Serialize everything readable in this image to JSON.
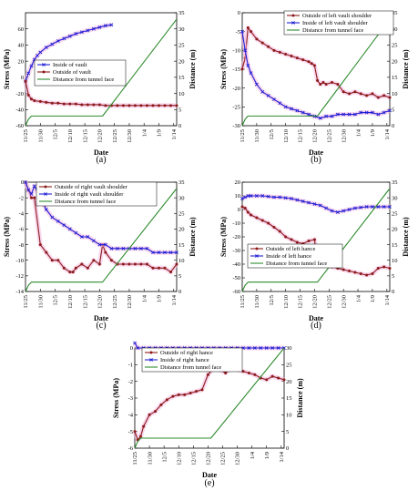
{
  "chart_data": [
    {
      "id": "a",
      "type": "line",
      "panel_label": "(a)",
      "xlabel": "Date",
      "ylabel_left": "Stress (MPa)",
      "ylabel_right": "Distance (m)",
      "ylim_left": [
        -60,
        80
      ],
      "yticks_left": [
        -60,
        -40,
        -20,
        0,
        20,
        40,
        60
      ],
      "ylim_right": [
        0,
        35
      ],
      "yticks_right": [
        0,
        5,
        10,
        15,
        20,
        25,
        30,
        35
      ],
      "xlim": [
        0,
        51
      ],
      "xticks": [
        {
          "x": 0,
          "label": "11/25"
        },
        {
          "x": 5,
          "label": "11/30"
        },
        {
          "x": 10,
          "label": "12/5"
        },
        {
          "x": 15,
          "label": "12/10"
        },
        {
          "x": 20,
          "label": "12/15"
        },
        {
          "x": 25,
          "label": "12/20"
        },
        {
          "x": 30,
          "label": "12/25"
        },
        {
          "x": 35,
          "label": "12/30"
        },
        {
          "x": 40,
          "label": "1/4"
        },
        {
          "x": 45,
          "label": "1/9"
        },
        {
          "x": 50,
          "label": "1/14"
        }
      ],
      "legend_position": "left",
      "series": [
        {
          "name": "Inside of vault",
          "axis": "left",
          "color": "#1f1fd6",
          "marker": "x",
          "x": [
            0,
            1,
            2,
            3,
            4,
            5,
            7,
            9,
            11,
            13,
            15,
            17,
            19,
            21,
            23,
            25,
            27,
            29
          ],
          "y": [
            -5,
            5,
            14,
            22,
            27,
            31,
            37,
            41,
            45,
            48,
            51,
            54,
            56,
            58,
            60,
            62,
            64,
            65
          ]
        },
        {
          "name": "Outside of vault",
          "axis": "left",
          "color": "#8b1a1a",
          "marker": "circle",
          "x": [
            0,
            1,
            2,
            3,
            5,
            7,
            9,
            11,
            13,
            15,
            17,
            19,
            21,
            23,
            25,
            27,
            29,
            31,
            33,
            35,
            37,
            39,
            41,
            43,
            45,
            47,
            49,
            51
          ],
          "y": [
            -5,
            -22,
            -27,
            -29,
            -30,
            -31,
            -32,
            -32,
            -33,
            -33,
            -33,
            -34,
            -34,
            -34,
            -34,
            -35,
            -35,
            -35,
            -35,
            -35,
            -35,
            -35,
            -35,
            -35,
            -35,
            -35,
            -35,
            -35
          ]
        },
        {
          "name": "Distance from tunnel face",
          "axis": "right",
          "color": "#2e8b2e",
          "marker": "none",
          "x": [
            0,
            1,
            2,
            26,
            51
          ],
          "y": [
            0,
            2,
            3,
            3,
            33
          ]
        }
      ]
    },
    {
      "id": "b",
      "type": "line",
      "panel_label": "(b)",
      "xlabel": "Date",
      "ylabel_left": "Stress (MPa)",
      "ylabel_right": "Distance (m)",
      "ylim_left": [
        -30,
        0
      ],
      "yticks_left": [
        -30,
        -25,
        -20,
        -15,
        -10,
        -5,
        0
      ],
      "ylim_right": [
        0,
        35
      ],
      "yticks_right": [
        0,
        5,
        10,
        15,
        20,
        25,
        30,
        35
      ],
      "xlim": [
        0,
        51
      ],
      "xticks": [
        {
          "x": 0,
          "label": "11/25"
        },
        {
          "x": 5,
          "label": "11/30"
        },
        {
          "x": 10,
          "label": "12/5"
        },
        {
          "x": 15,
          "label": "12/10"
        },
        {
          "x": 20,
          "label": "12/15"
        },
        {
          "x": 25,
          "label": "12/20"
        },
        {
          "x": 30,
          "label": "12/25"
        },
        {
          "x": 35,
          "label": "12/30"
        },
        {
          "x": 40,
          "label": "1/4"
        },
        {
          "x": 45,
          "label": "1/9"
        },
        {
          "x": 50,
          "label": "1/14"
        }
      ],
      "legend_position": "top",
      "series": [
        {
          "name": "Outside of  left vault shoulder",
          "axis": "left",
          "color": "#8b1a1a",
          "marker": "circle",
          "x": [
            0,
            1,
            2,
            3,
            5,
            7,
            9,
            11,
            13,
            15,
            17,
            19,
            21,
            23,
            24,
            25,
            26,
            27,
            28,
            29,
            31,
            33,
            35,
            37,
            39,
            41,
            43,
            45,
            47,
            49,
            51
          ],
          "y": [
            -15,
            -12,
            -4,
            -5,
            -7,
            -8,
            -9,
            -10,
            -10.5,
            -11,
            -11.5,
            -12,
            -12.5,
            -13,
            -13.5,
            -14,
            -18,
            -19,
            -18.5,
            -19,
            -18.5,
            -19,
            -21,
            -21.5,
            -21,
            -21.5,
            -22,
            -21.5,
            -22.5,
            -22,
            -22.5
          ]
        },
        {
          "name": "Inside of  left vault shoulder",
          "axis": "left",
          "color": "#1f1fd6",
          "marker": "x",
          "x": [
            0,
            1,
            2,
            3,
            5,
            7,
            9,
            11,
            13,
            15,
            17,
            19,
            21,
            23,
            25,
            27,
            29,
            31,
            33,
            35,
            37,
            39,
            41,
            43,
            45,
            47,
            49,
            51
          ],
          "y": [
            -5,
            -10,
            -14,
            -16,
            -19,
            -21,
            -22,
            -23,
            -24,
            -25,
            -25.5,
            -26,
            -26.5,
            -27,
            -27.5,
            -28,
            -27.5,
            -27.5,
            -27,
            -27,
            -27,
            -27,
            -26.5,
            -26.5,
            -26.5,
            -27,
            -26.5,
            -26
          ]
        },
        {
          "name": "Distance from tunnel face",
          "axis": "right",
          "color": "#2e8b2e",
          "marker": "none",
          "x": [
            0,
            1,
            2,
            26,
            51
          ],
          "y": [
            0,
            2,
            3,
            3,
            33
          ]
        }
      ]
    },
    {
      "id": "c",
      "type": "line",
      "panel_label": "(c)",
      "xlabel": "Date",
      "ylabel_left": "Stress (MPa)",
      "ylabel_right": "Distance (m)",
      "ylim_left": [
        -14,
        0
      ],
      "yticks_left": [
        -14,
        -12,
        -10,
        -8,
        -6,
        -4,
        -2,
        0
      ],
      "ylim_right": [
        0,
        35
      ],
      "yticks_right": [
        0,
        5,
        10,
        15,
        20,
        25,
        30,
        35
      ],
      "xlim": [
        0,
        51
      ],
      "xticks": [
        {
          "x": 0,
          "label": "11/25"
        },
        {
          "x": 5,
          "label": "11/30"
        },
        {
          "x": 10,
          "label": "12/5"
        },
        {
          "x": 15,
          "label": "12/10"
        },
        {
          "x": 20,
          "label": "12/15"
        },
        {
          "x": 25,
          "label": "12/20"
        },
        {
          "x": 30,
          "label": "12/25"
        },
        {
          "x": 35,
          "label": "12/30"
        },
        {
          "x": 40,
          "label": "1/4"
        },
        {
          "x": 45,
          "label": "1/9"
        },
        {
          "x": 50,
          "label": "1/14"
        }
      ],
      "legend_position": "top",
      "series": [
        {
          "name": "Outside of  right vault shoulder",
          "axis": "left",
          "color": "#8b1a1a",
          "marker": "circle",
          "x": [
            0,
            1,
            2,
            3,
            5,
            7,
            9,
            11,
            13,
            15,
            16,
            17,
            19,
            21,
            23,
            25,
            26,
            27,
            29,
            31,
            33,
            35,
            37,
            39,
            41,
            43,
            45,
            47,
            49,
            51
          ],
          "y": [
            0,
            -1,
            -2,
            -2,
            -8,
            -9,
            -10,
            -10,
            -11,
            -11.5,
            -11.5,
            -11,
            -10.5,
            -11,
            -10,
            -10.5,
            -8,
            -9,
            -10,
            -10.5,
            -10.5,
            -10.5,
            -10.5,
            -10.5,
            -10.5,
            -11,
            -11,
            -11,
            -11.5,
            -10.5
          ]
        },
        {
          "name": "Inside of  right vault shoulder",
          "axis": "left",
          "color": "#1f1fd6",
          "marker": "x",
          "x": [
            0,
            1,
            2,
            3,
            5,
            7,
            9,
            11,
            13,
            15,
            17,
            19,
            21,
            23,
            25,
            27,
            29,
            31,
            33,
            35,
            37,
            39,
            41,
            43,
            45,
            47,
            49,
            51
          ],
          "y": [
            0,
            -1,
            -1.5,
            -0.5,
            -2,
            -3.5,
            -4.5,
            -5,
            -5.5,
            -6,
            -6.5,
            -7,
            -7,
            -7.5,
            -8,
            -8,
            -8.5,
            -8.5,
            -8.5,
            -8.5,
            -8.5,
            -8.5,
            -8.5,
            -9,
            -9,
            -9,
            -9,
            -9
          ]
        },
        {
          "name": "Distance from tunnel face",
          "axis": "right",
          "color": "#2e8b2e",
          "marker": "none",
          "x": [
            0,
            1,
            2,
            26,
            51
          ],
          "y": [
            0,
            2,
            3,
            3,
            33
          ]
        }
      ]
    },
    {
      "id": "d",
      "type": "line",
      "panel_label": "(d)",
      "xlabel": "Date",
      "ylabel_left": "Stress (MPa)",
      "ylabel_right": "Distance (m)",
      "ylim_left": [
        -60,
        20
      ],
      "yticks_left": [
        -60,
        -50,
        -40,
        -30,
        -20,
        -10,
        0,
        10,
        20
      ],
      "ylim_right": [
        0,
        35
      ],
      "yticks_right": [
        0,
        5,
        10,
        15,
        20,
        25,
        30,
        35
      ],
      "xlim": [
        0,
        51
      ],
      "xticks": [
        {
          "x": 0,
          "label": "11/25"
        },
        {
          "x": 5,
          "label": "11/30"
        },
        {
          "x": 10,
          "label": "12/5"
        },
        {
          "x": 15,
          "label": "12/10"
        },
        {
          "x": 20,
          "label": "12/15"
        },
        {
          "x": 25,
          "label": "12/20"
        },
        {
          "x": 30,
          "label": "12/25"
        },
        {
          "x": 35,
          "label": "12/30"
        },
        {
          "x": 40,
          "label": "1/4"
        },
        {
          "x": 45,
          "label": "1/9"
        },
        {
          "x": 50,
          "label": "1/14"
        }
      ],
      "legend_position": "bottom-left",
      "series": [
        {
          "name": "Outside of left hance",
          "axis": "left",
          "color": "#8b1a1a",
          "marker": "circle",
          "x": [
            0,
            1,
            2,
            3,
            5,
            7,
            9,
            11,
            13,
            15,
            17,
            19,
            21,
            23,
            25,
            26,
            27,
            29,
            31,
            33,
            35,
            37,
            39,
            41,
            43,
            45,
            47,
            49,
            51
          ],
          "y": [
            2,
            1,
            -2,
            -4,
            -6,
            -8,
            -10,
            -13,
            -16,
            -20,
            -22,
            -24,
            -25,
            -23,
            -22,
            -40,
            -41,
            -41,
            -42,
            -43,
            -44,
            -45,
            -46,
            -47,
            -48,
            -47,
            -43,
            -42,
            -43
          ]
        },
        {
          "name": "Inside of left hance",
          "axis": "left",
          "color": "#1f1fd6",
          "marker": "x",
          "x": [
            0,
            1,
            2,
            3,
            5,
            7,
            9,
            11,
            13,
            15,
            17,
            19,
            21,
            23,
            25,
            27,
            29,
            31,
            33,
            35,
            37,
            39,
            41,
            43,
            45,
            47,
            49,
            51
          ],
          "y": [
            8,
            9,
            10,
            10,
            10,
            10,
            9.5,
            9,
            9,
            8.5,
            8,
            7,
            6,
            5,
            4,
            3,
            1,
            -1,
            -2,
            -1,
            0,
            1,
            1.5,
            2,
            2,
            2,
            2,
            2
          ]
        },
        {
          "name": "Distance from tunnel face",
          "axis": "right",
          "color": "#2e8b2e",
          "marker": "none",
          "x": [
            0,
            1,
            2,
            26,
            51
          ],
          "y": [
            0,
            2,
            3,
            3,
            33
          ]
        }
      ]
    },
    {
      "id": "e",
      "type": "line",
      "panel_label": "(e)",
      "xlabel": "Date",
      "ylabel_left": "Stress (MPa)",
      "ylabel_right": "Distance (m)",
      "ylim_left": [
        -6,
        0
      ],
      "yticks_left": [
        -6,
        -5,
        -4,
        -3,
        -2,
        -1,
        0
      ],
      "ylim_right": [
        0,
        30
      ],
      "yticks_right": [
        0,
        5,
        10,
        15,
        20,
        25,
        30
      ],
      "xlim": [
        0,
        51
      ],
      "xticks": [
        {
          "x": 0,
          "label": "11/25"
        },
        {
          "x": 5,
          "label": "11/30"
        },
        {
          "x": 10,
          "label": "12/5"
        },
        {
          "x": 15,
          "label": "12/10"
        },
        {
          "x": 20,
          "label": "12/15"
        },
        {
          "x": 25,
          "label": "12/20"
        },
        {
          "x": 30,
          "label": "12/25"
        },
        {
          "x": 35,
          "label": "12/30"
        },
        {
          "x": 40,
          "label": "1/4"
        },
        {
          "x": 45,
          "label": "1/9"
        },
        {
          "x": 50,
          "label": "1/14"
        }
      ],
      "legend_position": "top",
      "series": [
        {
          "name": "Outside of right hance",
          "axis": "left",
          "color": "#8b1a1a",
          "marker": "circle",
          "x": [
            0,
            1,
            2,
            3,
            5,
            7,
            9,
            11,
            13,
            15,
            17,
            19,
            21,
            23,
            25,
            27,
            29,
            31,
            33,
            35,
            37,
            39,
            41,
            43,
            45,
            47,
            49,
            51
          ],
          "y": [
            -5,
            -5.5,
            -5.3,
            -4.7,
            -4.0,
            -3.8,
            -3.4,
            -3.1,
            -2.9,
            -2.8,
            -2.8,
            -2.7,
            -2.6,
            -2.5,
            -1.6,
            -1.2,
            -1.3,
            -1.5,
            -1.2,
            -1.3,
            -1.4,
            -1.5,
            -1.6,
            -1.8,
            -1.9,
            -1.7,
            -1.8,
            -1.9
          ]
        },
        {
          "name": "Inside of right hance",
          "axis": "left",
          "color": "#1f1fd6",
          "marker": "x",
          "x": [
            0,
            1,
            3,
            5,
            7,
            9,
            11,
            13,
            15,
            17,
            19,
            21,
            23,
            25,
            27,
            29,
            31,
            33,
            35,
            37,
            39,
            41,
            43,
            45,
            47,
            49,
            51
          ],
          "y": [
            0.3,
            0,
            0,
            0,
            0,
            0,
            0,
            0,
            0,
            0,
            0,
            0,
            0,
            0,
            0,
            0,
            0,
            0,
            0,
            0,
            0,
            0,
            0,
            0,
            0,
            0,
            0
          ]
        },
        {
          "name": "Distance from tunnel face",
          "axis": "right",
          "color": "#2e8b2e",
          "marker": "none",
          "x": [
            0,
            1,
            2,
            26,
            51
          ],
          "y": [
            0,
            2,
            3,
            3,
            30
          ]
        }
      ]
    }
  ]
}
